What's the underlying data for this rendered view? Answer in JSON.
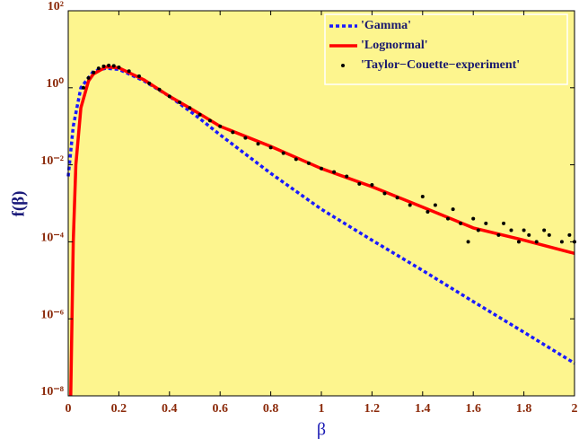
{
  "chart_data": {
    "type": "line",
    "xlabel": "β",
    "ylabel": "f(β)",
    "yscale": "log",
    "legend": "upper right",
    "background": "#fdf58e",
    "xlim": [
      0,
      2
    ],
    "ylim": [
      1e-08,
      100
    ],
    "xticks": [
      0,
      0.2,
      0.4,
      0.6,
      0.8,
      1,
      1.2,
      1.4,
      1.6,
      1.8,
      2
    ],
    "yticks": [
      {
        "value": 1e-08,
        "label": "10⁻⁸"
      },
      {
        "value": 1e-06,
        "label": "10⁻⁶"
      },
      {
        "value": 0.0001,
        "label": "10⁻⁴"
      },
      {
        "value": 0.01,
        "label": "10⁻²"
      },
      {
        "value": 1,
        "label": "10⁰"
      },
      {
        "value": 100,
        "label": "10²"
      }
    ],
    "series": [
      {
        "name": "'Gamma'",
        "color": "#1a1aff",
        "style": "dashed",
        "x": [
          0,
          0.02,
          0.05,
          0.1,
          0.15,
          0.2,
          0.3,
          0.4,
          0.5,
          0.6,
          0.8,
          1.0,
          1.2,
          1.4,
          1.6,
          1.8,
          2.0
        ],
        "values": [
          0.005,
          0.1,
          1.0,
          2.7,
          3.2,
          3.0,
          1.5,
          0.6,
          0.2,
          0.06,
          0.006,
          0.0007,
          0.00011,
          1.8e-05,
          2.8e-06,
          4.5e-07,
          7e-08
        ]
      },
      {
        "name": "'Lognormal'",
        "color": "#ff0000",
        "style": "solid",
        "x": [
          0.01,
          0.02,
          0.03,
          0.05,
          0.08,
          0.1,
          0.15,
          0.2,
          0.3,
          0.4,
          0.5,
          0.6,
          0.8,
          1.0,
          1.2,
          1.4,
          1.6,
          1.8,
          2.0
        ],
        "values": [
          1e-08,
          0.0001,
          0.01,
          0.3,
          1.5,
          2.3,
          3.5,
          3.3,
          1.6,
          0.6,
          0.25,
          0.1,
          0.03,
          0.008,
          0.0027,
          0.0008,
          0.00023,
          0.00011,
          5e-05
        ]
      },
      {
        "name": "'Taylor−Couette−experiment'",
        "color": "#000000",
        "style": "dots",
        "x": [
          0.06,
          0.08,
          0.1,
          0.12,
          0.14,
          0.16,
          0.18,
          0.2,
          0.24,
          0.28,
          0.32,
          0.36,
          0.4,
          0.44,
          0.48,
          0.52,
          0.56,
          0.6,
          0.65,
          0.7,
          0.75,
          0.8,
          0.85,
          0.9,
          0.95,
          1.0,
          1.05,
          1.1,
          1.15,
          1.2,
          1.25,
          1.3,
          1.35,
          1.4,
          1.42,
          1.45,
          1.5,
          1.52,
          1.55,
          1.58,
          1.6,
          1.62,
          1.65,
          1.7,
          1.72,
          1.75,
          1.78,
          1.8,
          1.82,
          1.85,
          1.88,
          1.9,
          1.95,
          1.98,
          2.0
        ],
        "values": [
          1.0,
          1.8,
          2.5,
          3.2,
          3.6,
          3.8,
          3.7,
          3.4,
          2.7,
          2.0,
          1.3,
          0.9,
          0.6,
          0.42,
          0.3,
          0.2,
          0.14,
          0.1,
          0.07,
          0.05,
          0.035,
          0.028,
          0.02,
          0.014,
          0.011,
          0.008,
          0.0065,
          0.005,
          0.0032,
          0.003,
          0.0018,
          0.0014,
          0.0009,
          0.0015,
          0.0006,
          0.0009,
          0.0004,
          0.0007,
          0.0003,
          0.0001,
          0.0004,
          0.0002,
          0.0003,
          0.00015,
          0.0003,
          0.0002,
          0.0001,
          0.0002,
          0.00015,
          0.0001,
          0.0002,
          0.00015,
          0.0001,
          0.00015,
          0.0001
        ]
      }
    ]
  }
}
